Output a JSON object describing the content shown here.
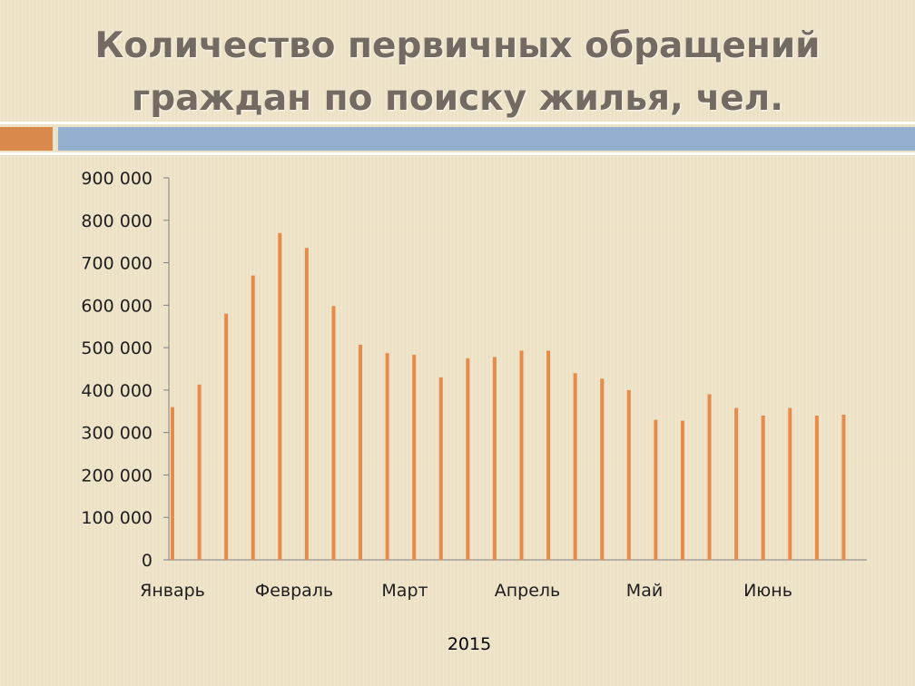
{
  "slide": {
    "title_lines": [
      "Количество первичных обращений",
      "граждан по поиску жилья, чел."
    ]
  },
  "colors": {
    "bar": "#e58c4a",
    "accent_orange": "#d9894c",
    "accent_blue": "#93b1cf",
    "title": "#736b62"
  },
  "chart_data": {
    "type": "bar",
    "title": "Количество первичных обращений граждан по поиску жилья, чел.",
    "xlabel": "2015",
    "ylabel": "",
    "ylim": [
      0,
      900000
    ],
    "y_ticks": [
      0,
      100000,
      200000,
      300000,
      400000,
      500000,
      600000,
      700000,
      800000,
      900000
    ],
    "y_tick_labels": [
      "0",
      "100 000",
      "200 000",
      "300 000",
      "400 000",
      "500 000",
      "600 000",
      "700 000",
      "800 000",
      "900 000"
    ],
    "category_labels": [
      "Январь",
      "Февраль",
      "Март",
      "Апрель",
      "Май",
      "Июнь"
    ],
    "grid": false,
    "legend": "none",
    "values": [
      360000,
      413000,
      580000,
      670000,
      770000,
      735000,
      598000,
      507000,
      487000,
      483000,
      430000,
      475000,
      478000,
      493000,
      493000,
      440000,
      427000,
      400000,
      330000,
      328000,
      390000,
      358000,
      340000,
      358000,
      340000,
      342000
    ]
  }
}
